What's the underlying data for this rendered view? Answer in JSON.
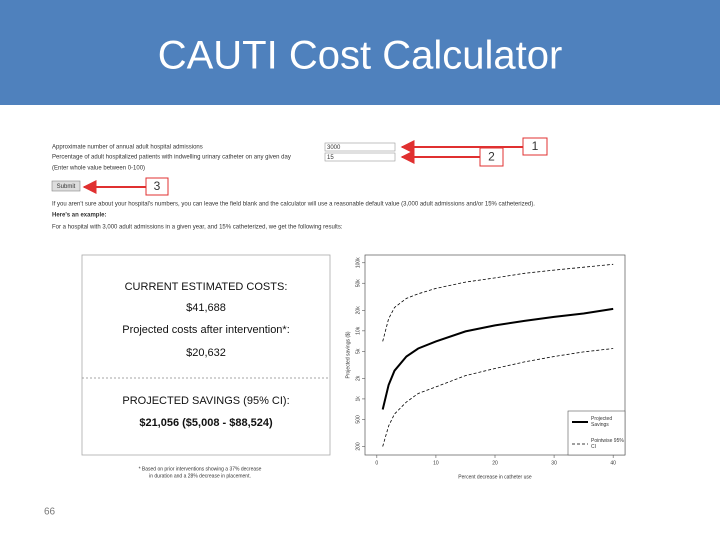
{
  "header": {
    "title": "CAUTI Cost Calculator"
  },
  "form": {
    "admissions_label": "Approximate number of annual adult hospital admissions",
    "admissions_value": "3000",
    "percent_label": "Percentage of adult hospitalized patients with indwelling urinary catheter on any given day",
    "percent_value": "15",
    "percent_hint": "(Enter whole value between 0-100)",
    "submit": "Submit",
    "note": "If you aren't sure about your hospital's numbers, you can leave the field blank and the calculator will use a reasonable default value (3,000 adult admissions and/or 15% catheterized).",
    "example_heading": "Here's an example:",
    "example_text": "For a hospital with 3,000 adult admissions in a given year, and 15% catheterized, we get the following results:",
    "callouts": [
      "1",
      "2",
      "3"
    ]
  },
  "results": {
    "current_heading": "CURRENT ESTIMATED COSTS:",
    "current_value": "$41,688",
    "projected_heading": "Projected costs after intervention*:",
    "projected_value": "$20,632",
    "savings_heading": "PROJECTED SAVINGS (95% CI):",
    "savings_value": "$21,056 ($5,008 - $88,524)",
    "footnote": [
      "* Based on prior interventions showing a 37% decrease",
      "in duration and a 28% decrease in placement."
    ]
  },
  "chart_data": {
    "type": "line",
    "x_label": "Percent decrease in catheter use",
    "y_label": "Projected savings ($)",
    "log_y": true,
    "x": [
      1,
      2,
      3,
      5,
      7,
      10,
      15,
      20,
      25,
      30,
      35,
      40
    ],
    "series": [
      {
        "name": "Projected Savings",
        "color": "#000000",
        "dash": false,
        "values": [
          700,
          1600,
          2600,
          4200,
          5500,
          7000,
          9800,
          12000,
          14000,
          16000,
          18000,
          21000
        ]
      },
      {
        "name": "Pointwise 95% CI",
        "color": "#000000",
        "dash": true,
        "values": [
          7000,
          15000,
          22000,
          30000,
          35000,
          42000,
          52000,
          60000,
          70000,
          78000,
          86000,
          95000
        ]
      },
      {
        "color": "#000000",
        "dash": true,
        "values": [
          200,
          400,
          600,
          900,
          1200,
          1500,
          2200,
          2800,
          3500,
          4200,
          4900,
          5500
        ]
      }
    ],
    "xlim": [
      -2,
      42
    ],
    "xticks": [
      0,
      10,
      20,
      30,
      40
    ],
    "ylim": [
      150,
      130000
    ],
    "yticks": [
      200,
      500,
      {
        "value": 1000,
        "label": "1k"
      },
      {
        "value": 2000,
        "label": "2k"
      },
      {
        "value": 5000,
        "label": "5k"
      },
      {
        "value": 10000,
        "label": "10k"
      },
      {
        "value": 20000,
        "label": "20k"
      },
      {
        "value": 50000,
        "label": "50k"
      },
      {
        "value": 100000,
        "label": "100k"
      }
    ],
    "legend": "bottom-right"
  },
  "footer": {
    "page": "66"
  }
}
